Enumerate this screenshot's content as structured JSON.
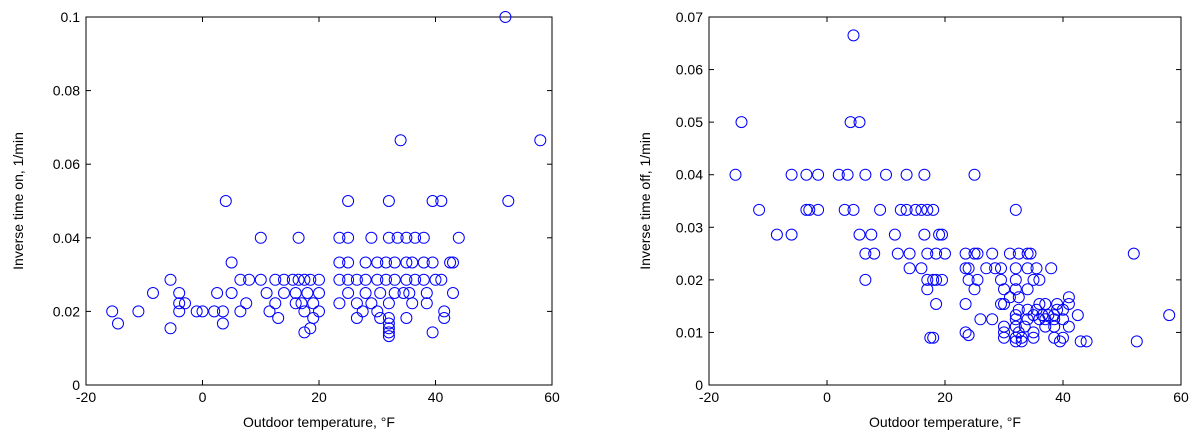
{
  "chart_data": [
    {
      "type": "scatter",
      "xlabel": "Outdoor temperature, °F",
      "ylabel": "Inverse time on, 1/min",
      "xlim": [
        -20,
        60
      ],
      "ylim": [
        0,
        0.1
      ],
      "xticks": [
        -20,
        0,
        20,
        40,
        60
      ],
      "yticks": [
        0,
        0.02,
        0.04,
        0.06,
        0.08,
        0.1
      ],
      "xtick_labels": [
        "-20",
        "0",
        "20",
        "40",
        "60"
      ],
      "ytick_labels": [
        "0",
        "0.02",
        "0.04",
        "0.06",
        "0.08",
        "0.1"
      ],
      "marker": "circle-open",
      "color": "#0000ff",
      "grid": false,
      "points": [
        [
          52,
          0.1
        ],
        [
          58,
          0.0665
        ],
        [
          34,
          0.0665
        ],
        [
          52.5,
          0.05
        ],
        [
          4,
          0.05
        ],
        [
          25,
          0.05
        ],
        [
          32,
          0.05
        ],
        [
          39.5,
          0.05
        ],
        [
          41,
          0.05
        ],
        [
          10,
          0.04
        ],
        [
          16.5,
          0.04
        ],
        [
          23.5,
          0.04
        ],
        [
          25,
          0.04
        ],
        [
          29,
          0.04
        ],
        [
          32,
          0.04
        ],
        [
          33.5,
          0.04
        ],
        [
          35,
          0.04
        ],
        [
          36.5,
          0.04
        ],
        [
          38,
          0.04
        ],
        [
          44,
          0.04
        ],
        [
          5,
          0.0333
        ],
        [
          23.5,
          0.0333
        ],
        [
          25,
          0.0333
        ],
        [
          28,
          0.0333
        ],
        [
          30,
          0.0333
        ],
        [
          31.5,
          0.0333
        ],
        [
          33,
          0.0333
        ],
        [
          35,
          0.0333
        ],
        [
          36,
          0.0333
        ],
        [
          38,
          0.0333
        ],
        [
          39.5,
          0.0333
        ],
        [
          42.5,
          0.0333
        ],
        [
          43,
          0.0333
        ],
        [
          -5.5,
          0.0286
        ],
        [
          6.5,
          0.0286
        ],
        [
          8,
          0.0286
        ],
        [
          10,
          0.0286
        ],
        [
          12.5,
          0.0286
        ],
        [
          14,
          0.0286
        ],
        [
          15.5,
          0.0286
        ],
        [
          16.5,
          0.0286
        ],
        [
          17.5,
          0.0286
        ],
        [
          18.5,
          0.0286
        ],
        [
          20,
          0.0286
        ],
        [
          23.5,
          0.0286
        ],
        [
          25,
          0.0286
        ],
        [
          26.5,
          0.0286
        ],
        [
          28,
          0.0286
        ],
        [
          30,
          0.0286
        ],
        [
          31.5,
          0.0286
        ],
        [
          33,
          0.0286
        ],
        [
          35,
          0.0286
        ],
        [
          36.5,
          0.0286
        ],
        [
          38,
          0.0286
        ],
        [
          40,
          0.0286
        ],
        [
          41,
          0.0286
        ],
        [
          -8.5,
          0.025
        ],
        [
          -4,
          0.025
        ],
        [
          2.5,
          0.025
        ],
        [
          5,
          0.025
        ],
        [
          11,
          0.025
        ],
        [
          14,
          0.025
        ],
        [
          16,
          0.025
        ],
        [
          18,
          0.025
        ],
        [
          20,
          0.025
        ],
        [
          25,
          0.025
        ],
        [
          28,
          0.025
        ],
        [
          30.5,
          0.025
        ],
        [
          33,
          0.025
        ],
        [
          34.5,
          0.025
        ],
        [
          35.5,
          0.025
        ],
        [
          38.5,
          0.025
        ],
        [
          43,
          0.025
        ],
        [
          -4,
          0.0222
        ],
        [
          -3,
          0.0222
        ],
        [
          7.5,
          0.0222
        ],
        [
          12.5,
          0.0222
        ],
        [
          16,
          0.0222
        ],
        [
          17,
          0.0222
        ],
        [
          19,
          0.0222
        ],
        [
          23.5,
          0.0222
        ],
        [
          26.5,
          0.0222
        ],
        [
          29,
          0.0222
        ],
        [
          32,
          0.0222
        ],
        [
          36,
          0.0222
        ],
        [
          38.5,
          0.0222
        ],
        [
          -15.5,
          0.02
        ],
        [
          -11,
          0.02
        ],
        [
          -4,
          0.02
        ],
        [
          -1,
          0.02
        ],
        [
          0,
          0.02
        ],
        [
          2,
          0.02
        ],
        [
          3.5,
          0.02
        ],
        [
          6.5,
          0.02
        ],
        [
          11.5,
          0.02
        ],
        [
          17.5,
          0.02
        ],
        [
          20,
          0.02
        ],
        [
          27.5,
          0.02
        ],
        [
          30,
          0.02
        ],
        [
          41.5,
          0.02
        ],
        [
          13,
          0.0182
        ],
        [
          19,
          0.0182
        ],
        [
          26.5,
          0.0182
        ],
        [
          30.5,
          0.0182
        ],
        [
          32,
          0.0182
        ],
        [
          35,
          0.0182
        ],
        [
          41.5,
          0.0182
        ],
        [
          -14.5,
          0.0167
        ],
        [
          3.5,
          0.0167
        ],
        [
          32,
          0.0167
        ],
        [
          -5.5,
          0.0154
        ],
        [
          18.5,
          0.0154
        ],
        [
          32,
          0.0154
        ],
        [
          17.5,
          0.0143
        ],
        [
          32,
          0.0143
        ],
        [
          39.5,
          0.0143
        ],
        [
          32,
          0.0133
        ]
      ]
    },
    {
      "type": "scatter",
      "xlabel": "Outdoor temperature, °F",
      "ylabel": "Inverse time off, 1/min",
      "xlim": [
        -20,
        60
      ],
      "ylim": [
        0,
        0.07
      ],
      "xticks": [
        -20,
        0,
        20,
        40,
        60
      ],
      "yticks": [
        0,
        0.01,
        0.02,
        0.03,
        0.04,
        0.05,
        0.06,
        0.07
      ],
      "xtick_labels": [
        "-20",
        "0",
        "20",
        "40",
        "60"
      ],
      "ytick_labels": [
        "0",
        "0.01",
        "0.02",
        "0.03",
        "0.04",
        "0.05",
        "0.06",
        "0.07"
      ],
      "marker": "circle-open",
      "color": "#0000ff",
      "grid": false,
      "points": [
        [
          4.5,
          0.0665
        ],
        [
          -14.5,
          0.05
        ],
        [
          4,
          0.05
        ],
        [
          5.5,
          0.05
        ],
        [
          -15.5,
          0.04
        ],
        [
          -6,
          0.04
        ],
        [
          -3.5,
          0.04
        ],
        [
          -1.5,
          0.04
        ],
        [
          2,
          0.04
        ],
        [
          3.5,
          0.04
        ],
        [
          6.5,
          0.04
        ],
        [
          10,
          0.04
        ],
        [
          13.5,
          0.04
        ],
        [
          16.5,
          0.04
        ],
        [
          25,
          0.04
        ],
        [
          -11.5,
          0.0333
        ],
        [
          -3.5,
          0.0333
        ],
        [
          -3,
          0.0333
        ],
        [
          -1.5,
          0.0333
        ],
        [
          3,
          0.0333
        ],
        [
          4.5,
          0.0333
        ],
        [
          9,
          0.0333
        ],
        [
          12.5,
          0.0333
        ],
        [
          13.5,
          0.0333
        ],
        [
          15,
          0.0333
        ],
        [
          16,
          0.0333
        ],
        [
          17,
          0.0333
        ],
        [
          18,
          0.0333
        ],
        [
          32,
          0.0333
        ],
        [
          -8.5,
          0.0286
        ],
        [
          -6,
          0.0286
        ],
        [
          5.5,
          0.0286
        ],
        [
          7.5,
          0.0286
        ],
        [
          11.5,
          0.0286
        ],
        [
          16.5,
          0.0286
        ],
        [
          19,
          0.0286
        ],
        [
          19.5,
          0.0286
        ],
        [
          6.5,
          0.025
        ],
        [
          8,
          0.025
        ],
        [
          12,
          0.025
        ],
        [
          14,
          0.025
        ],
        [
          17,
          0.025
        ],
        [
          18.5,
          0.025
        ],
        [
          20,
          0.025
        ],
        [
          23.5,
          0.025
        ],
        [
          25,
          0.025
        ],
        [
          25.5,
          0.025
        ],
        [
          28,
          0.025
        ],
        [
          31,
          0.025
        ],
        [
          32.5,
          0.025
        ],
        [
          34,
          0.025
        ],
        [
          34.5,
          0.025
        ],
        [
          52,
          0.025
        ],
        [
          14,
          0.0222
        ],
        [
          16,
          0.0222
        ],
        [
          23.5,
          0.0222
        ],
        [
          24,
          0.0222
        ],
        [
          27,
          0.0222
        ],
        [
          28.5,
          0.0222
        ],
        [
          29.5,
          0.0222
        ],
        [
          32,
          0.0222
        ],
        [
          34,
          0.0222
        ],
        [
          35.5,
          0.0222
        ],
        [
          38,
          0.0222
        ],
        [
          6.5,
          0.02
        ],
        [
          17,
          0.02
        ],
        [
          18,
          0.02
        ],
        [
          18.5,
          0.02
        ],
        [
          19.5,
          0.02
        ],
        [
          24,
          0.02
        ],
        [
          25.5,
          0.02
        ],
        [
          29.5,
          0.02
        ],
        [
          32,
          0.02
        ],
        [
          35,
          0.02
        ],
        [
          36,
          0.02
        ],
        [
          17,
          0.0182
        ],
        [
          25,
          0.0182
        ],
        [
          30,
          0.0182
        ],
        [
          32,
          0.0182
        ],
        [
          34,
          0.0182
        ],
        [
          31,
          0.0167
        ],
        [
          32.5,
          0.0167
        ],
        [
          41,
          0.0167
        ],
        [
          18.5,
          0.0154
        ],
        [
          23.5,
          0.0154
        ],
        [
          29.5,
          0.0154
        ],
        [
          30,
          0.0154
        ],
        [
          36,
          0.0154
        ],
        [
          37,
          0.0154
        ],
        [
          39,
          0.0154
        ],
        [
          41,
          0.0154
        ],
        [
          32.5,
          0.0143
        ],
        [
          34,
          0.0143
        ],
        [
          35.5,
          0.0143
        ],
        [
          39,
          0.0143
        ],
        [
          40,
          0.0143
        ],
        [
          32,
          0.0133
        ],
        [
          35,
          0.0133
        ],
        [
          36.5,
          0.0133
        ],
        [
          37.5,
          0.0133
        ],
        [
          38.5,
          0.0133
        ],
        [
          42.5,
          0.0133
        ],
        [
          58,
          0.0133
        ],
        [
          26,
          0.0125
        ],
        [
          28,
          0.0125
        ],
        [
          32,
          0.0125
        ],
        [
          34,
          0.0125
        ],
        [
          36,
          0.0125
        ],
        [
          37,
          0.0125
        ],
        [
          38.5,
          0.0125
        ],
        [
          40,
          0.0125
        ],
        [
          30,
          0.0111
        ],
        [
          32,
          0.0111
        ],
        [
          33.5,
          0.0111
        ],
        [
          37,
          0.0111
        ],
        [
          38.5,
          0.0111
        ],
        [
          41,
          0.0111
        ],
        [
          30,
          0.01
        ],
        [
          32.5,
          0.01
        ],
        [
          35,
          0.01
        ],
        [
          23.5,
          0.01
        ],
        [
          24,
          0.0095
        ],
        [
          17.5,
          0.009
        ],
        [
          18,
          0.009
        ],
        [
          30,
          0.009
        ],
        [
          32,
          0.009
        ],
        [
          33,
          0.009
        ],
        [
          35,
          0.009
        ],
        [
          38.5,
          0.009
        ],
        [
          40,
          0.009
        ],
        [
          32,
          0.0083
        ],
        [
          33,
          0.0083
        ],
        [
          39.5,
          0.0083
        ],
        [
          43,
          0.0083
        ],
        [
          44,
          0.0083
        ],
        [
          52.5,
          0.0083
        ]
      ]
    }
  ]
}
